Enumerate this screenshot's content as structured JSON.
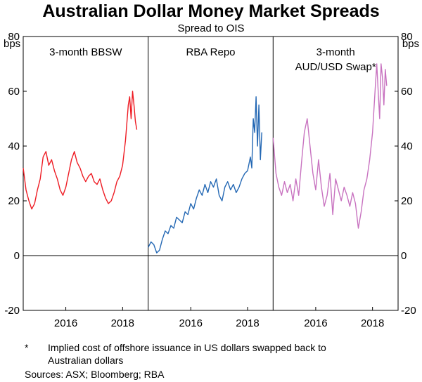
{
  "title": "Australian Dollar Money Market Spreads",
  "subtitle": "Spread to OIS",
  "footnote": {
    "marker": "*",
    "text_line1": "Implied cost of offshore issuance in US dollars swapped back to",
    "text_line2": "Australian dollars"
  },
  "sources": "Sources: ASX; Bloomberg; RBA",
  "chart_data": {
    "type": "line",
    "yunit_left": "bps",
    "yunit_right": "bps",
    "ylim": [
      -20,
      80
    ],
    "yticks": [
      -20,
      0,
      20,
      40,
      60,
      80
    ],
    "ytick_labels": [
      "-20",
      "0",
      "20",
      "40",
      "60",
      "80"
    ],
    "xlim": [
      2014.5,
      2018.9
    ],
    "xticks": [
      2016,
      2018
    ],
    "xtick_labels": [
      "2016",
      "2018"
    ],
    "grid": false,
    "panels": [
      {
        "title_lines": [
          "3-month BBSW"
        ],
        "series_name": "3-month BBSW",
        "color": "#ee1c24",
        "x": [
          2014.5,
          2014.6,
          2014.7,
          2014.8,
          2014.9,
          2015.0,
          2015.1,
          2015.2,
          2015.3,
          2015.4,
          2015.5,
          2015.6,
          2015.7,
          2015.8,
          2015.9,
          2016.0,
          2016.1,
          2016.2,
          2016.3,
          2016.4,
          2016.5,
          2016.6,
          2016.7,
          2016.8,
          2016.9,
          2017.0,
          2017.1,
          2017.2,
          2017.3,
          2017.4,
          2017.5,
          2017.6,
          2017.7,
          2017.8,
          2017.9,
          2018.0,
          2018.1,
          2018.2,
          2018.25,
          2018.3,
          2018.35,
          2018.4,
          2018.45,
          2018.5
        ],
        "values": [
          32,
          24,
          20,
          17,
          19,
          24,
          28,
          36,
          38,
          33,
          35,
          31,
          28,
          24,
          22,
          25,
          30,
          35,
          38,
          34,
          32,
          29,
          27,
          29,
          30,
          27,
          26,
          28,
          24,
          21,
          19,
          20,
          23,
          27,
          29,
          33,
          42,
          55,
          58,
          50,
          60,
          55,
          49,
          46
        ]
      },
      {
        "title_lines": [
          "RBA Repo"
        ],
        "series_name": "RBA Repo",
        "color": "#2468b4",
        "x": [
          2014.5,
          2014.6,
          2014.7,
          2014.8,
          2014.9,
          2015.0,
          2015.1,
          2015.2,
          2015.3,
          2015.4,
          2015.5,
          2015.6,
          2015.7,
          2015.8,
          2015.9,
          2016.0,
          2016.1,
          2016.2,
          2016.3,
          2016.4,
          2016.5,
          2016.6,
          2016.7,
          2016.8,
          2016.9,
          2017.0,
          2017.1,
          2017.2,
          2017.3,
          2017.4,
          2017.5,
          2017.6,
          2017.7,
          2017.8,
          2017.9,
          2018.0,
          2018.1,
          2018.15,
          2018.2,
          2018.25,
          2018.3,
          2018.35,
          2018.4,
          2018.45,
          2018.5
        ],
        "values": [
          3,
          5,
          4,
          1,
          2,
          6,
          9,
          8,
          11,
          10,
          14,
          13,
          12,
          16,
          15,
          19,
          17,
          21,
          24,
          22,
          26,
          23,
          27,
          25,
          28,
          22,
          20,
          25,
          27,
          24,
          26,
          23,
          25,
          28,
          30,
          31,
          36,
          32,
          50,
          45,
          58,
          40,
          55,
          35,
          45
        ]
      },
      {
        "title_lines": [
          "3-month",
          "AUD/USD Swap*"
        ],
        "series_name": "3-month AUD/USD Swap*",
        "color": "#c873c0",
        "x": [
          2014.5,
          2014.6,
          2014.7,
          2014.8,
          2014.9,
          2015.0,
          2015.1,
          2015.2,
          2015.3,
          2015.4,
          2015.5,
          2015.6,
          2015.7,
          2015.8,
          2015.9,
          2016.0,
          2016.1,
          2016.2,
          2016.3,
          2016.4,
          2016.5,
          2016.6,
          2016.7,
          2016.8,
          2016.9,
          2017.0,
          2017.1,
          2017.2,
          2017.3,
          2017.4,
          2017.5,
          2017.6,
          2017.7,
          2017.8,
          2017.9,
          2018.0,
          2018.1,
          2018.15,
          2018.2,
          2018.25,
          2018.3,
          2018.35,
          2018.4,
          2018.45,
          2018.5
        ],
        "values": [
          43,
          30,
          25,
          22,
          27,
          23,
          26,
          20,
          28,
          22,
          34,
          45,
          50,
          40,
          30,
          24,
          35,
          25,
          18,
          22,
          30,
          15,
          28,
          24,
          20,
          25,
          22,
          18,
          23,
          19,
          10,
          16,
          24,
          28,
          35,
          45,
          62,
          70,
          60,
          50,
          70,
          65,
          55,
          68,
          62
        ]
      }
    ]
  }
}
